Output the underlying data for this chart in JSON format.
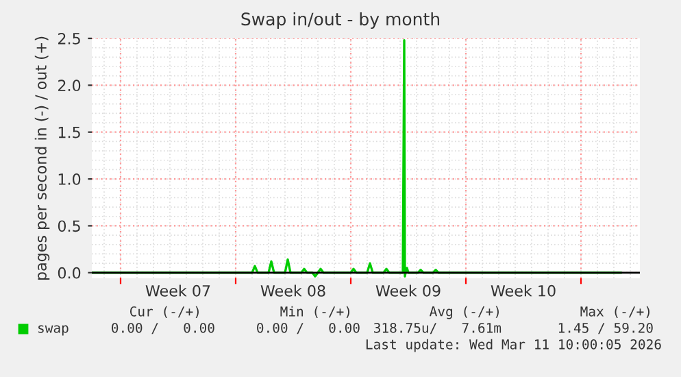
{
  "chart_data": {
    "type": "line",
    "title": "Swap in/out - by month",
    "ylabel": "pages per second in (-) / out (+)",
    "x": [
      "2026-02-07T06:00",
      "2026-02-17T00:00",
      "2026-02-17T04:00",
      "2026-02-17T08:00",
      "2026-02-18T00:00",
      "2026-02-18T04:00",
      "2026-02-18T08:00",
      "2026-02-19T00:00",
      "2026-02-19T04:00",
      "2026-02-19T08:00",
      "2026-02-20T00:00",
      "2026-02-20T04:00",
      "2026-02-20T08:00",
      "2026-02-20T16:00",
      "2026-02-20T20:00",
      "2026-02-21T00:00",
      "2026-02-21T04:00",
      "2026-02-21T08:00",
      "2026-02-23T00:00",
      "2026-02-23T04:00",
      "2026-02-23T08:00",
      "2026-02-24T00:00",
      "2026-02-24T04:00",
      "2026-02-24T08:00",
      "2026-02-25T00:00",
      "2026-02-25T04:00",
      "2026-02-25T08:00",
      "2026-02-26T04:00",
      "2026-02-26T06:00",
      "2026-02-26T07:00",
      "2026-02-26T08:00",
      "2026-02-26T10:00",
      "2026-02-26T12:00",
      "2026-02-27T02:00",
      "2026-02-27T06:00",
      "2026-02-27T10:00",
      "2026-02-28T00:00",
      "2026-02-28T04:00",
      "2026-02-28T08:00",
      "2026-03-11T10:00"
    ],
    "series": [
      {
        "name": "swap",
        "color": "#00cc00",
        "values": [
          0,
          0,
          0.07,
          0,
          0,
          0.12,
          0,
          0,
          0.14,
          0,
          0,
          0.04,
          0,
          0,
          -0.04,
          0,
          0.04,
          0,
          0,
          0.04,
          0,
          0,
          0.1,
          0,
          0,
          0.04,
          0,
          0,
          2.48,
          -0.04,
          0,
          0.05,
          0,
          0,
          0.03,
          0,
          0,
          0.03,
          0,
          0
        ]
      }
    ],
    "xlim": [
      "2026-02-07T06:00",
      "2026-03-12T14:00"
    ],
    "xticks": [
      {
        "value": "2026-02-09",
        "label": null
      },
      {
        "value": "2026-02-12T12:00",
        "label": "Week 07"
      },
      {
        "value": "2026-02-16",
        "label": null
      },
      {
        "value": "2026-02-19T12:00",
        "label": "Week 08"
      },
      {
        "value": "2026-02-23",
        "label": null
      },
      {
        "value": "2026-02-26T12:00",
        "label": "Week 09"
      },
      {
        "value": "2026-03-02",
        "label": null
      },
      {
        "value": "2026-03-05T12:00",
        "label": "Week 10"
      },
      {
        "value": "2026-03-09",
        "label": null
      }
    ],
    "ylim": [
      -0.06,
      2.5
    ],
    "yticks": [
      {
        "value": 0,
        "label": "0.0"
      },
      {
        "value": 0.5,
        "label": "0.5"
      },
      {
        "value": 1,
        "label": "1.0"
      },
      {
        "value": 1.5,
        "label": "1.5"
      },
      {
        "value": 2,
        "label": "2.0"
      },
      {
        "value": 2.5,
        "label": "2.5"
      }
    ],
    "ref_lines": [
      {
        "axis": "y",
        "value": 0,
        "color": "#000000"
      }
    ],
    "grid": true,
    "legend": "bottom",
    "annotations": [
      "Cur (-/+)",
      "Min (-/+)",
      "Avg (-/+)",
      "Max (-/+)",
      "0.00 /   0.00",
      "0.00 /   0.00",
      "318.75u/   7.61m",
      "1.45 / 59.20",
      "Last update: Wed Mar 11 10:00:05 2026"
    ]
  }
}
